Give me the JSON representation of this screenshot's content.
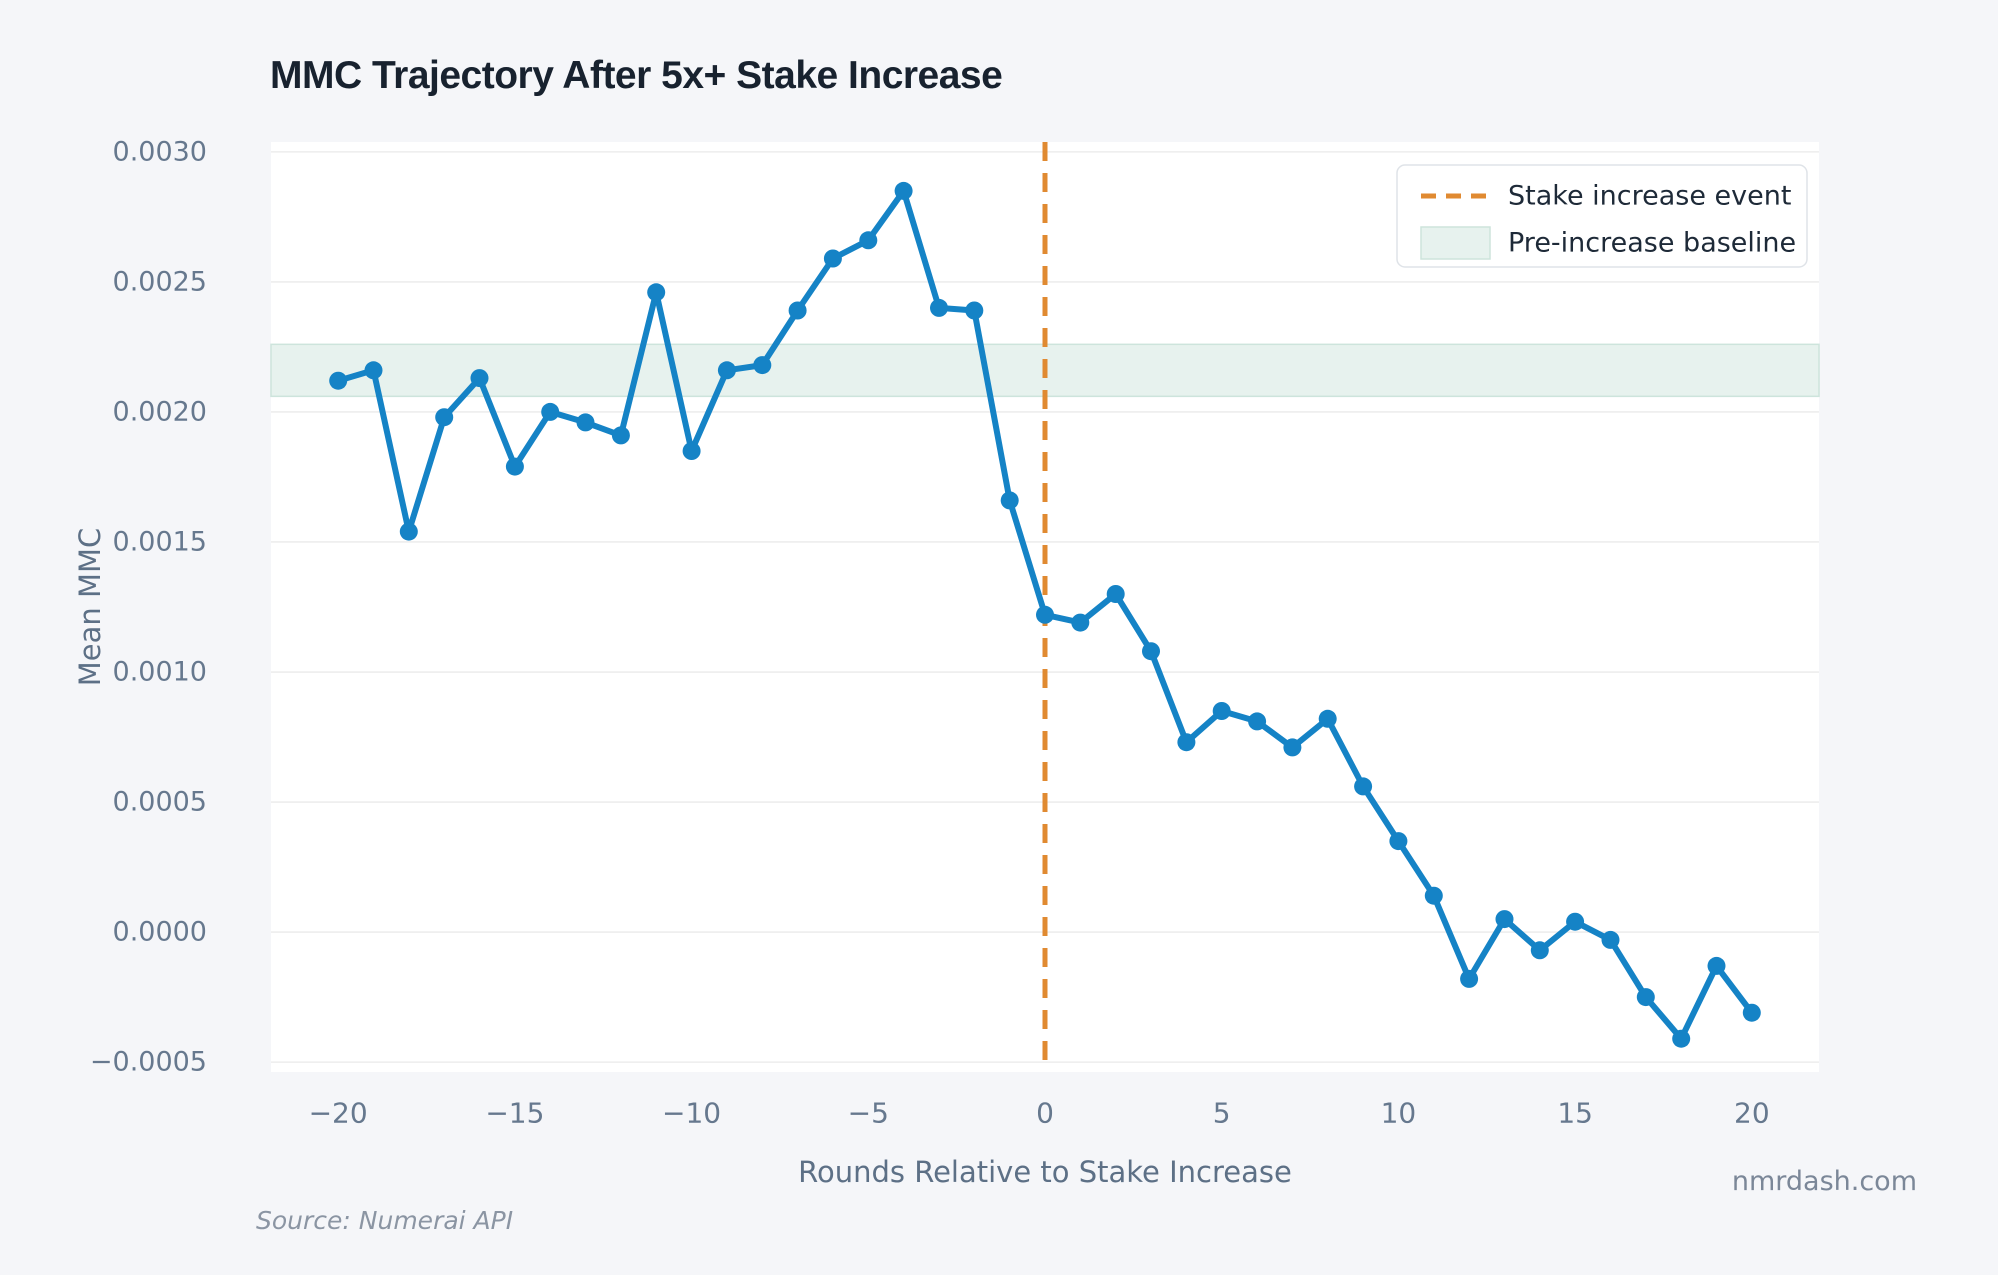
{
  "title": "MMC Trajectory After 5x+ Stake Increase",
  "source_note": "Source: Numerai API",
  "watermark": "nmrdash.com",
  "colors": {
    "background": "#f5f6f9",
    "plot_background": "#ffffff",
    "line": "#1583c6",
    "marker": "#1583c6",
    "event_line": "#e08a31",
    "band_fill": "#e7f2ee",
    "band_stroke": "#cde4dc",
    "gridline": "#ededed",
    "tick_label": "#66788e",
    "axis_label": "#5d7086",
    "title_text": "#18222f",
    "legend_text": "#1e2a38",
    "legend_border": "#dfe3e8"
  },
  "chart_data": {
    "type": "line",
    "title": "MMC Trajectory After 5x+ Stake Increase",
    "xlabel": "Rounds Relative to Stake Increase",
    "ylabel": "Mean MMC",
    "grid": "horizontal",
    "xlim": [
      -21.9,
      21.9
    ],
    "ylim": [
      -0.000538,
      0.003038
    ],
    "x": [
      -20,
      -19,
      -18,
      -17,
      -16,
      -15,
      -14,
      -13,
      -12,
      -11,
      -10,
      -9,
      -8,
      -7,
      -6,
      -5,
      -4,
      -3,
      -2,
      -1,
      0,
      1,
      2,
      3,
      4,
      5,
      6,
      7,
      8,
      9,
      10,
      11,
      12,
      13,
      14,
      15,
      16,
      17,
      18,
      19,
      20
    ],
    "values": [
      0.00212,
      0.00216,
      0.00154,
      0.00198,
      0.00213,
      0.00179,
      0.002,
      0.00196,
      0.00191,
      0.00246,
      0.00185,
      0.00216,
      0.00218,
      0.00239,
      0.00259,
      0.00266,
      0.00285,
      0.0024,
      0.00239,
      0.00166,
      0.00122,
      0.00119,
      0.0013,
      0.00108,
      0.00073,
      0.00085,
      0.00081,
      0.00071,
      0.00082,
      0.00056,
      0.00035,
      0.00014,
      -0.00018,
      5e-05,
      -7e-05,
      4e-05,
      -3e-05,
      -0.00025,
      -0.00041,
      -0.00013,
      -0.00031
    ],
    "yticks": [
      0.003,
      0.0025,
      0.002,
      0.0015,
      0.001,
      0.0005,
      0.0,
      -0.0005
    ],
    "ytick_labels": [
      "0.0030",
      "0.0025",
      "0.0020",
      "0.0015",
      "0.0010",
      "0.0005",
      "0.0000",
      "−0.0005"
    ],
    "xticks": [
      -20,
      -15,
      -10,
      -5,
      0,
      5,
      10,
      15,
      20
    ],
    "xtick_labels": [
      "−20",
      "−15",
      "−10",
      "−5",
      "0",
      "5",
      "10",
      "15",
      "20"
    ],
    "event_line": {
      "x": 0,
      "label": "Stake increase event"
    },
    "baseline_band": {
      "ymin": 0.00206,
      "ymax": 0.00226,
      "label": "Pre-increase baseline"
    },
    "legend": {
      "position": "upper right",
      "items": [
        {
          "type": "dashed-line",
          "label": "Stake increase event"
        },
        {
          "type": "band-swatch",
          "label": "Pre-increase baseline"
        }
      ]
    }
  }
}
